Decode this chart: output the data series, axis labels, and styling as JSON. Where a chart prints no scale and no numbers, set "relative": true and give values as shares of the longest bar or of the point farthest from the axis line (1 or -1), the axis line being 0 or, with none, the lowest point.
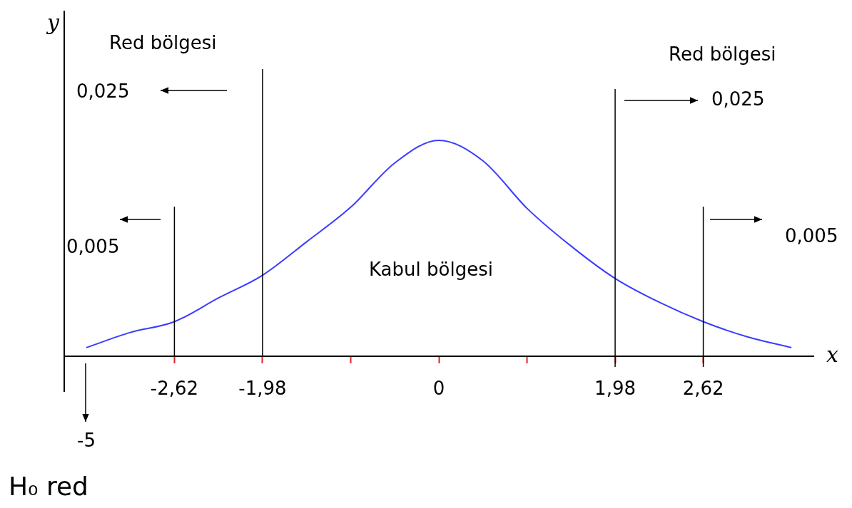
{
  "chart_data": {
    "type": "line",
    "relative": true,
    "xlabel": "x",
    "ylabel": "y",
    "categories": [
      null,
      null,
      "-2,62",
      null,
      "-1,98",
      null,
      null,
      null,
      "0",
      null,
      null,
      null,
      "1,98",
      null,
      "2,62",
      null,
      null
    ],
    "series": [
      {
        "color": "#3b3bff",
        "values": [
          0.04,
          0.11,
          0.16,
          0.27,
          0.375,
          0.53,
          0.69,
          0.895,
          1,
          0.905,
          0.685,
          0.51,
          0.36,
          0.25,
          0.16,
          0.09,
          0.04
        ]
      }
    ],
    "ref_lines": [
      {
        "axis": "x",
        "value": "-2,62",
        "color": "#000000"
      },
      {
        "axis": "x",
        "value": "-1,98",
        "color": "#000000"
      },
      {
        "axis": "x",
        "value": "1,98",
        "color": "#000000"
      },
      {
        "axis": "x",
        "value": "2,62",
        "color": "#000000"
      }
    ],
    "annotations": [
      "Red bölgesi",
      "0,025",
      "0,005",
      "Red bölgesi",
      "0,025",
      "0,005",
      "Kabul bölgesi",
      "-5",
      "H₀ red"
    ],
    "grid": false,
    "legend": false
  }
}
